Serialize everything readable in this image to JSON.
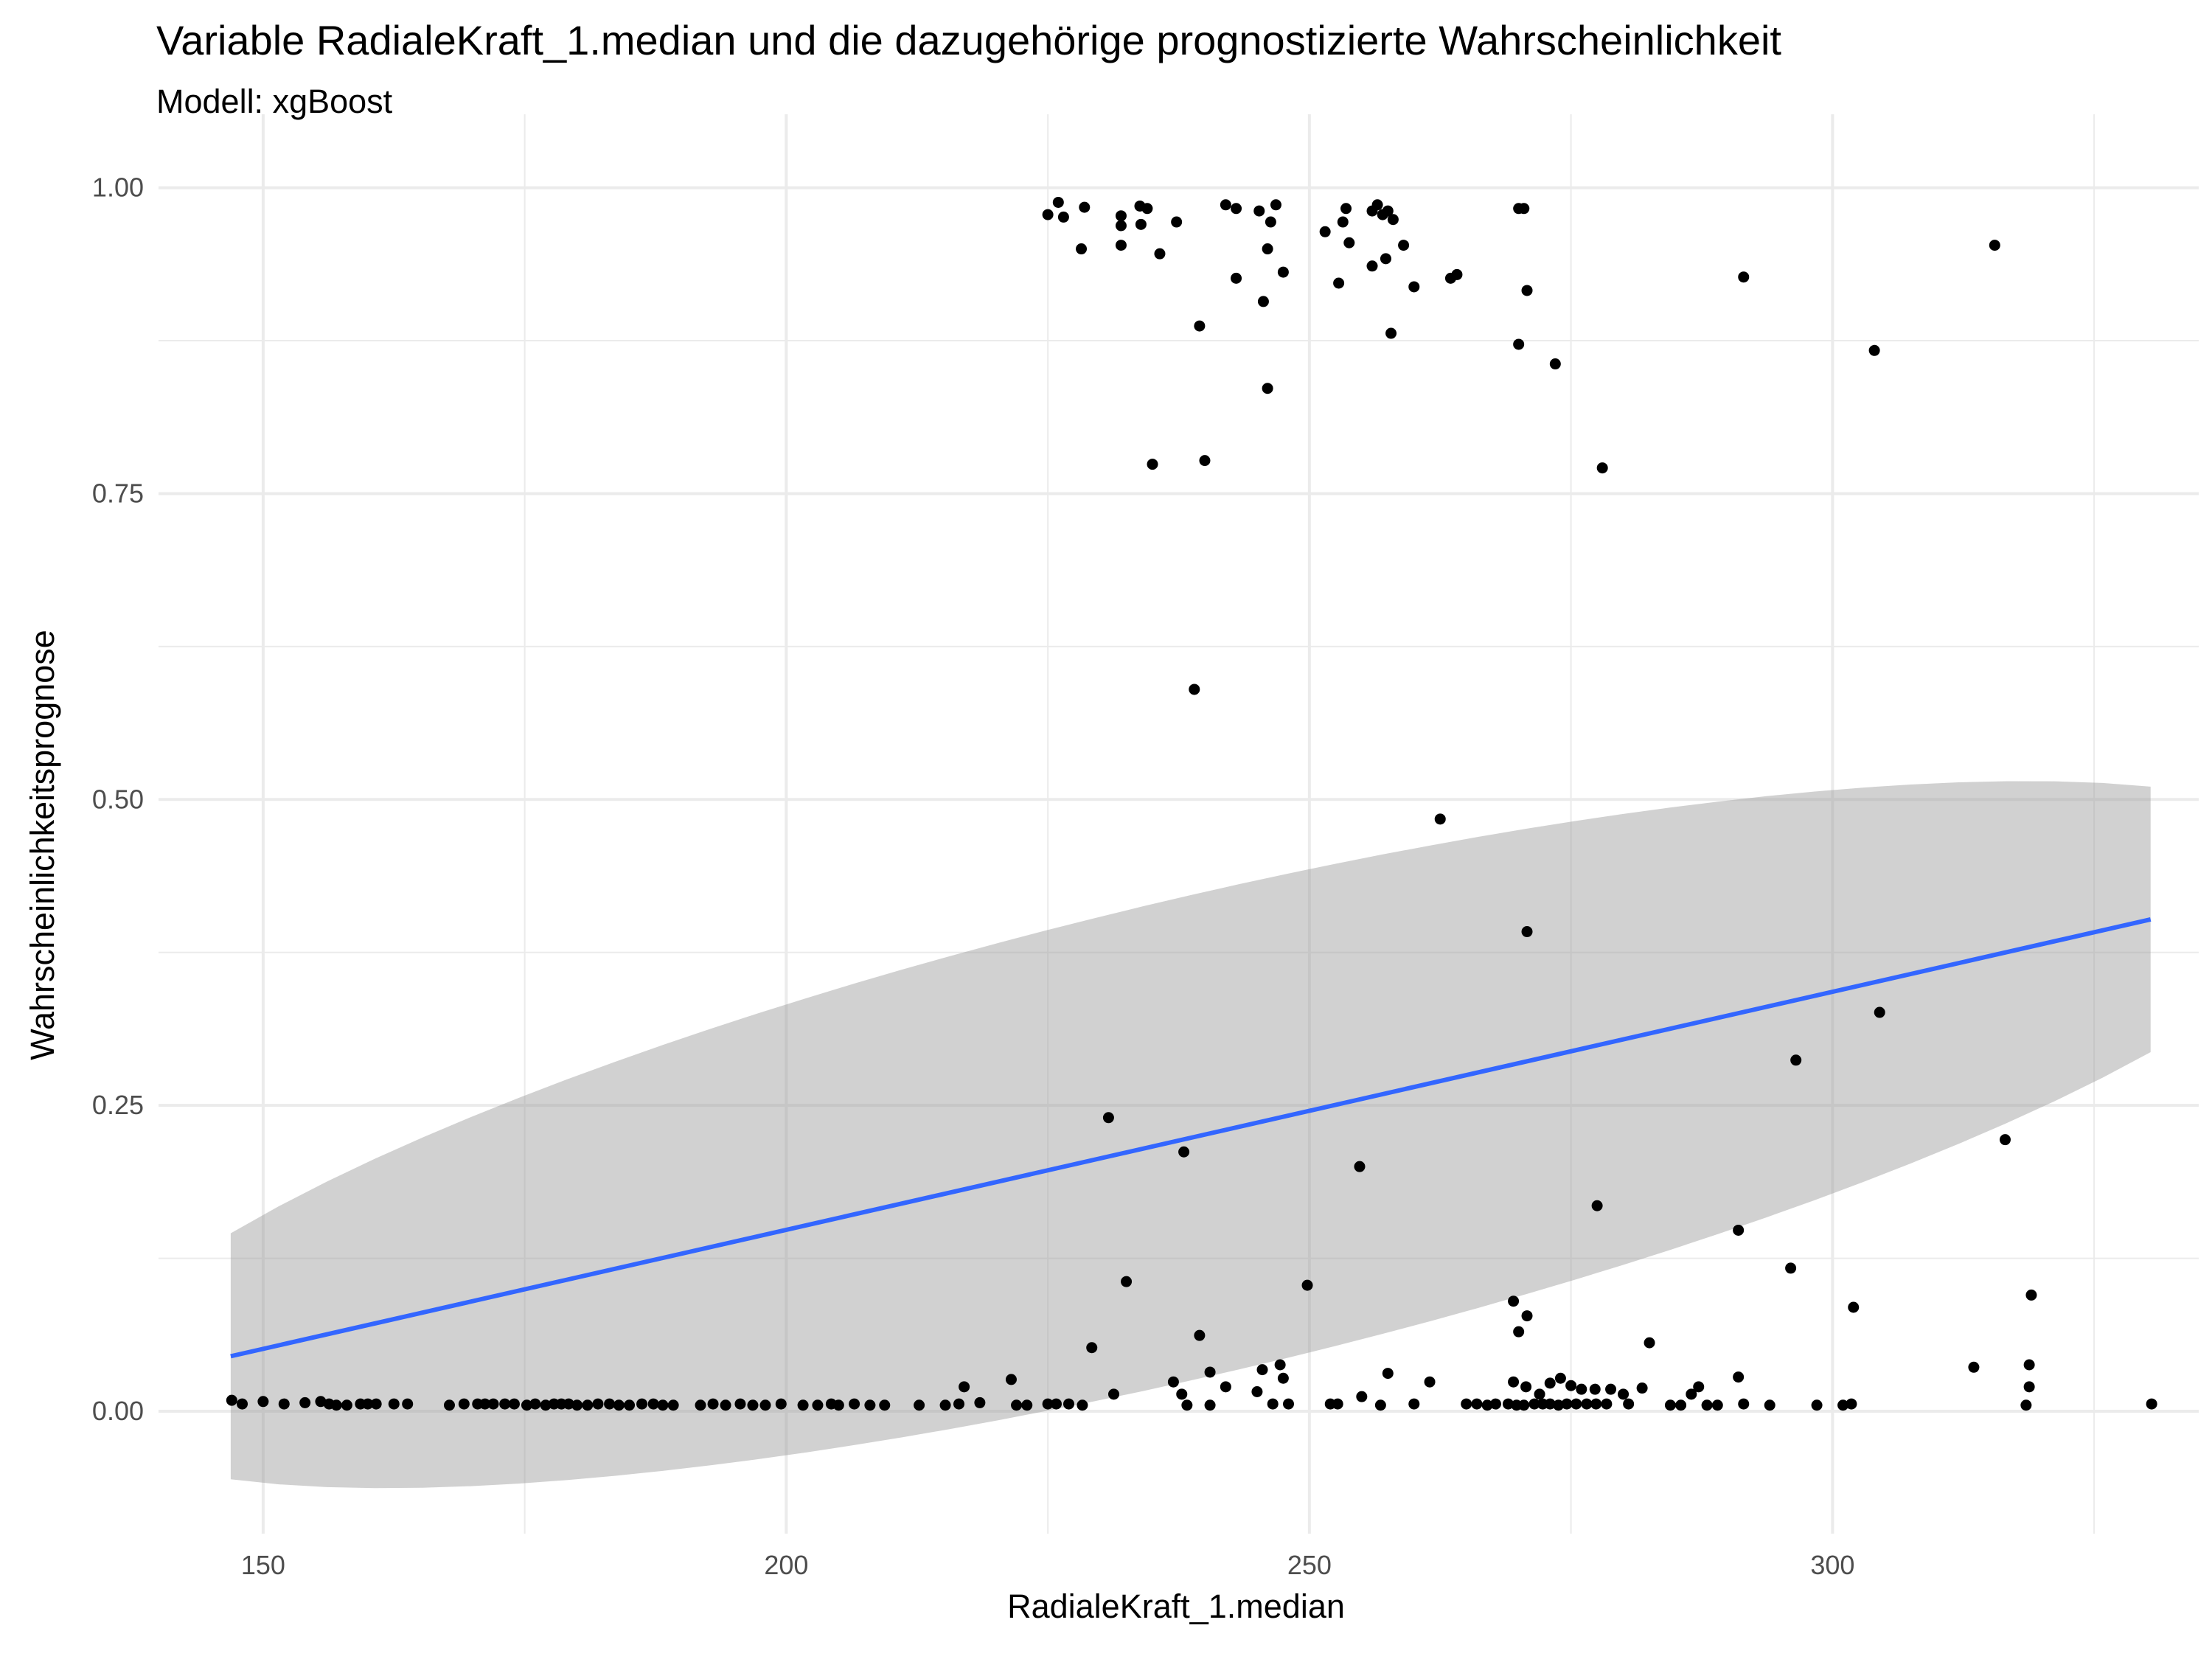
{
  "chart_data": {
    "type": "scatter",
    "title": "Variable RadialeKraft_1.median und die dazugehörige prognostizierte Wahrscheinlichkeit",
    "subtitle": "Modell: xgBoost",
    "xlabel": "RadialeKraft_1.median",
    "ylabel": "Wahrscheinlichkeitsprognose",
    "xlim": [
      140,
      335
    ],
    "ylim": [
      -0.1,
      1.06
    ],
    "x_ticks": [
      150,
      200,
      250,
      300
    ],
    "x_tick_labels": [
      "150",
      "200",
      "250",
      "300"
    ],
    "y_ticks": [
      0,
      0.25,
      0.5,
      0.75,
      1.0
    ],
    "y_tick_labels": [
      "0.00",
      "0.25",
      "0.50",
      "0.75",
      "1.00"
    ],
    "grid": true,
    "colors": {
      "points": "#000000",
      "line": "#3366FF",
      "ribbon": "#999999",
      "grid": "#EBEBEB"
    },
    "trend": {
      "method": "linear",
      "x": [
        146.9,
        330.4
      ],
      "y": [
        0.045,
        0.402
      ],
      "ci_lower": [
        -0.056,
        0.294
      ],
      "ci_upper": [
        0.145,
        0.511
      ]
    },
    "points": [
      [
        225.0,
        0.978
      ],
      [
        226.0,
        0.988
      ],
      [
        226.5,
        0.976
      ],
      [
        228.5,
        0.984
      ],
      [
        232.0,
        0.977
      ],
      [
        232.0,
        0.969
      ],
      [
        233.8,
        0.985
      ],
      [
        234.5,
        0.983
      ],
      [
        233.9,
        0.97
      ],
      [
        237.3,
        0.972
      ],
      [
        242.0,
        0.986
      ],
      [
        243.0,
        0.983
      ],
      [
        245.2,
        0.981
      ],
      [
        246.3,
        0.972
      ],
      [
        246.8,
        0.986
      ],
      [
        251.5,
        0.964
      ],
      [
        253.2,
        0.972
      ],
      [
        253.5,
        0.983
      ],
      [
        256.0,
        0.981
      ],
      [
        256.5,
        0.986
      ],
      [
        257.0,
        0.978
      ],
      [
        257.5,
        0.981
      ],
      [
        258.0,
        0.974
      ],
      [
        270.0,
        0.983
      ],
      [
        270.5,
        0.983
      ],
      [
        228.2,
        0.95
      ],
      [
        232.0,
        0.953
      ],
      [
        235.7,
        0.946
      ],
      [
        243.0,
        0.926
      ],
      [
        245.6,
        0.907
      ],
      [
        246.0,
        0.95
      ],
      [
        247.5,
        0.931
      ],
      [
        252.8,
        0.922
      ],
      [
        253.8,
        0.955
      ],
      [
        256.0,
        0.936
      ],
      [
        257.3,
        0.942
      ],
      [
        259.0,
        0.953
      ],
      [
        260.0,
        0.919
      ],
      [
        263.5,
        0.926
      ],
      [
        264.1,
        0.929
      ],
      [
        270.8,
        0.916
      ],
      [
        291.5,
        0.927
      ],
      [
        315.5,
        0.953
      ],
      [
        239.5,
        0.887
      ],
      [
        257.8,
        0.881
      ],
      [
        270.0,
        0.872
      ],
      [
        273.5,
        0.856
      ],
      [
        304.0,
        0.867
      ],
      [
        246.0,
        0.836
      ],
      [
        235.0,
        0.774
      ],
      [
        240.0,
        0.777
      ],
      [
        278.0,
        0.771
      ],
      [
        239.0,
        0.59
      ],
      [
        262.5,
        0.484
      ],
      [
        270.8,
        0.392
      ],
      [
        304.5,
        0.326
      ],
      [
        296.5,
        0.287
      ],
      [
        316.5,
        0.222
      ],
      [
        230.8,
        0.24
      ],
      [
        238.0,
        0.212
      ],
      [
        254.8,
        0.2
      ],
      [
        277.5,
        0.168
      ],
      [
        291.0,
        0.148
      ],
      [
        296.0,
        0.117
      ],
      [
        232.5,
        0.106
      ],
      [
        249.8,
        0.103
      ],
      [
        319.0,
        0.095
      ],
      [
        269.5,
        0.09
      ],
      [
        302.0,
        0.085
      ],
      [
        270.8,
        0.078
      ],
      [
        270.0,
        0.065
      ],
      [
        239.5,
        0.062
      ],
      [
        282.5,
        0.056
      ],
      [
        229.2,
        0.052
      ],
      [
        313.5,
        0.036
      ],
      [
        318.8,
        0.038
      ],
      [
        247.2,
        0.038
      ],
      [
        245.5,
        0.034
      ],
      [
        240.5,
        0.032
      ],
      [
        257.5,
        0.031
      ],
      [
        291.0,
        0.028
      ],
      [
        247.5,
        0.027
      ],
      [
        274.0,
        0.027
      ],
      [
        221.5,
        0.026
      ],
      [
        261.5,
        0.024
      ],
      [
        269.5,
        0.024
      ],
      [
        237.0,
        0.024
      ],
      [
        273.0,
        0.023
      ],
      [
        242.0,
        0.02
      ],
      [
        217.0,
        0.02
      ],
      [
        318.8,
        0.02
      ],
      [
        270.7,
        0.02
      ],
      [
        275.0,
        0.021
      ],
      [
        276.0,
        0.018
      ],
      [
        277.3,
        0.018
      ],
      [
        278.8,
        0.018
      ],
      [
        281.8,
        0.019
      ],
      [
        287.2,
        0.02
      ],
      [
        245.0,
        0.016
      ],
      [
        231.3,
        0.014
      ],
      [
        237.8,
        0.014
      ],
      [
        272.0,
        0.014
      ],
      [
        286.5,
        0.014
      ],
      [
        280.0,
        0.014
      ],
      [
        255.0,
        0.012
      ],
      [
        147.0,
        0.009
      ],
      [
        148.0,
        0.006
      ],
      [
        150.0,
        0.008
      ],
      [
        152.0,
        0.006
      ],
      [
        154.0,
        0.007
      ],
      [
        155.5,
        0.008
      ],
      [
        156.3,
        0.006
      ],
      [
        157.0,
        0.005
      ],
      [
        158.0,
        0.005
      ],
      [
        159.3,
        0.006
      ],
      [
        160.0,
        0.006
      ],
      [
        160.8,
        0.006
      ],
      [
        162.5,
        0.006
      ],
      [
        163.8,
        0.006
      ],
      [
        167.8,
        0.005
      ],
      [
        169.2,
        0.006
      ],
      [
        170.5,
        0.006
      ],
      [
        171.2,
        0.006
      ],
      [
        172.0,
        0.006
      ],
      [
        173.1,
        0.006
      ],
      [
        174.0,
        0.006
      ],
      [
        175.2,
        0.005
      ],
      [
        176.0,
        0.006
      ],
      [
        177.0,
        0.005
      ],
      [
        177.8,
        0.006
      ],
      [
        178.5,
        0.006
      ],
      [
        179.2,
        0.006
      ],
      [
        180.0,
        0.005
      ],
      [
        181.0,
        0.005
      ],
      [
        182.0,
        0.006
      ],
      [
        183.1,
        0.006
      ],
      [
        184.0,
        0.005
      ],
      [
        185.0,
        0.005
      ],
      [
        186.2,
        0.006
      ],
      [
        187.3,
        0.006
      ],
      [
        188.2,
        0.005
      ],
      [
        189.2,
        0.005
      ],
      [
        191.8,
        0.005
      ],
      [
        193.0,
        0.006
      ],
      [
        194.2,
        0.005
      ],
      [
        195.6,
        0.006
      ],
      [
        196.8,
        0.005
      ],
      [
        198.0,
        0.005
      ],
      [
        199.5,
        0.006
      ],
      [
        201.6,
        0.005
      ],
      [
        203.0,
        0.005
      ],
      [
        204.3,
        0.006
      ],
      [
        205.0,
        0.005
      ],
      [
        206.5,
        0.006
      ],
      [
        208.0,
        0.005
      ],
      [
        209.4,
        0.005
      ],
      [
        212.7,
        0.005
      ],
      [
        215.2,
        0.005
      ],
      [
        216.5,
        0.006
      ],
      [
        218.5,
        0.007
      ],
      [
        222.0,
        0.005
      ],
      [
        223.0,
        0.005
      ],
      [
        225.0,
        0.006
      ],
      [
        225.8,
        0.006
      ],
      [
        227.0,
        0.006
      ],
      [
        228.3,
        0.005
      ],
      [
        238.3,
        0.005
      ],
      [
        240.5,
        0.005
      ],
      [
        246.5,
        0.006
      ],
      [
        248.0,
        0.006
      ],
      [
        252.0,
        0.006
      ],
      [
        252.7,
        0.006
      ],
      [
        256.8,
        0.005
      ],
      [
        260.0,
        0.006
      ],
      [
        265.0,
        0.006
      ],
      [
        266.0,
        0.006
      ],
      [
        267.0,
        0.005
      ],
      [
        267.8,
        0.006
      ],
      [
        269.0,
        0.006
      ],
      [
        269.8,
        0.005
      ],
      [
        270.5,
        0.005
      ],
      [
        271.5,
        0.006
      ],
      [
        272.3,
        0.006
      ],
      [
        273.0,
        0.006
      ],
      [
        273.8,
        0.005
      ],
      [
        274.6,
        0.006
      ],
      [
        275.5,
        0.006
      ],
      [
        276.5,
        0.006
      ],
      [
        277.4,
        0.006
      ],
      [
        278.4,
        0.006
      ],
      [
        280.5,
        0.006
      ],
      [
        284.5,
        0.005
      ],
      [
        285.5,
        0.005
      ],
      [
        288.0,
        0.005
      ],
      [
        289.0,
        0.005
      ],
      [
        291.5,
        0.006
      ],
      [
        294.0,
        0.005
      ],
      [
        298.5,
        0.005
      ],
      [
        301.0,
        0.005
      ],
      [
        301.8,
        0.006
      ],
      [
        318.5,
        0.005
      ],
      [
        330.5,
        0.006
      ]
    ]
  }
}
